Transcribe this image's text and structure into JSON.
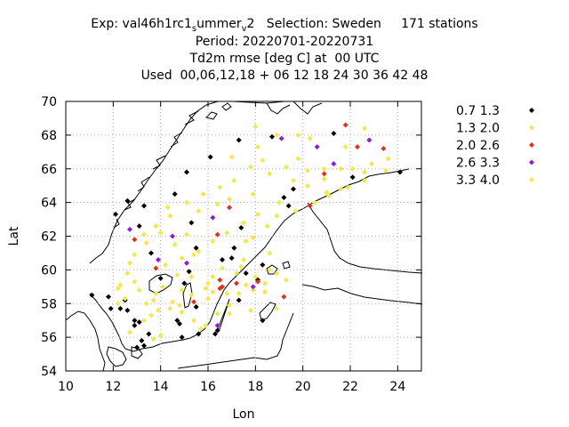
{
  "header": {
    "line1": {
      "prefix": "Exp: val46h1rc1",
      "sub1": "s",
      "mid": "ummer",
      "sub2": "v",
      "rest": "2   Selection: Sweden     171 stations"
    },
    "line2": "Period: 20220701-20220731",
    "line3": "Td2m rmse [deg C] at  00 UTC",
    "line4": "Used  00,06,12,18 + 06 12 18 24 30 36 42 48"
  },
  "chart_data": {
    "type": "scatter",
    "xlabel": "Lon",
    "ylabel": "Lat",
    "xlim": [
      10,
      25
    ],
    "ylim": [
      54,
      70
    ],
    "xticks": [
      10,
      12,
      14,
      16,
      18,
      20,
      22,
      24
    ],
    "yticks": [
      54,
      56,
      58,
      60,
      62,
      64,
      66,
      68,
      70
    ],
    "legend_position": "right",
    "series": [
      {
        "name": "0.7 1.3",
        "color": "#000000",
        "points": [
          [
            12.1,
            63.3
          ],
          [
            13.3,
            63.8
          ],
          [
            14.6,
            64.5
          ],
          [
            15.1,
            65.8
          ],
          [
            16.1,
            66.7
          ],
          [
            17.3,
            67.7
          ],
          [
            18.7,
            67.9
          ],
          [
            19.6,
            64.8
          ],
          [
            19.2,
            64.3
          ],
          [
            19.4,
            63.8
          ],
          [
            17.4,
            62.5
          ],
          [
            15.5,
            61.3
          ],
          [
            13.6,
            61.0
          ],
          [
            15.2,
            59.9
          ],
          [
            14.0,
            59.5
          ],
          [
            15.0,
            59.2
          ],
          [
            18.1,
            59.4
          ],
          [
            17.6,
            59.8
          ],
          [
            17.0,
            60.7
          ],
          [
            18.3,
            60.3
          ],
          [
            17.3,
            58.2
          ],
          [
            18.3,
            57.0
          ],
          [
            16.4,
            56.4
          ],
          [
            16.3,
            56.2
          ],
          [
            15.6,
            56.2
          ],
          [
            14.9,
            56.0
          ],
          [
            14.8,
            56.8
          ],
          [
            13.5,
            56.2
          ],
          [
            13.2,
            55.8
          ],
          [
            13.0,
            55.4
          ],
          [
            13.3,
            55.5
          ],
          [
            12.9,
            56.7
          ],
          [
            12.6,
            57.6
          ],
          [
            12.5,
            58.2
          ],
          [
            11.9,
            57.7
          ],
          [
            12.3,
            57.7
          ],
          [
            11.1,
            58.5
          ],
          [
            11.8,
            58.4
          ],
          [
            12.9,
            57.0
          ],
          [
            13.1,
            56.9
          ],
          [
            22.1,
            65.5
          ],
          [
            24.1,
            65.8
          ],
          [
            21.3,
            68.1
          ],
          [
            12.6,
            64.1
          ],
          [
            13.1,
            62.6
          ],
          [
            15.3,
            62.8
          ],
          [
            17.1,
            61.3
          ],
          [
            16.6,
            60.6
          ],
          [
            15.5,
            57.8
          ],
          [
            14.7,
            57.0
          ]
        ]
      },
      {
        "name": "1.3 2.0",
        "color": "#f1e84b",
        "points": [
          [
            18.0,
            68.5
          ],
          [
            18.9,
            68.0
          ],
          [
            19.8,
            68.0
          ],
          [
            20.3,
            67.8
          ],
          [
            21.8,
            67.3
          ],
          [
            22.6,
            68.4
          ],
          [
            23.6,
            66.6
          ],
          [
            22.9,
            66.3
          ],
          [
            22.6,
            65.8
          ],
          [
            21.6,
            66.0
          ],
          [
            20.9,
            66.0
          ],
          [
            20.2,
            65.9
          ],
          [
            19.3,
            66.1
          ],
          [
            18.3,
            66.5
          ],
          [
            17.8,
            66.1
          ],
          [
            17.1,
            65.3
          ],
          [
            16.5,
            64.9
          ],
          [
            15.8,
            64.5
          ],
          [
            15.1,
            64.0
          ],
          [
            14.4,
            63.2
          ],
          [
            13.8,
            62.6
          ],
          [
            13.3,
            62.1
          ],
          [
            12.9,
            60.9
          ],
          [
            12.6,
            59.8
          ],
          [
            12.3,
            59.1
          ],
          [
            12.5,
            58.3
          ],
          [
            13.1,
            58.8
          ],
          [
            13.4,
            58.0
          ],
          [
            13.8,
            58.6
          ],
          [
            14.1,
            59.0
          ],
          [
            14.5,
            58.1
          ],
          [
            14.9,
            57.5
          ],
          [
            15.4,
            57.0
          ],
          [
            15.9,
            56.7
          ],
          [
            16.4,
            57.4
          ],
          [
            16.9,
            57.9
          ],
          [
            17.3,
            58.6
          ],
          [
            17.6,
            59.1
          ],
          [
            18.0,
            59.6
          ],
          [
            18.6,
            60.0
          ],
          [
            18.9,
            59.8
          ],
          [
            19.3,
            59.4
          ],
          [
            18.4,
            59.2
          ],
          [
            17.9,
            58.8
          ],
          [
            17.2,
            59.8
          ],
          [
            16.6,
            60.1
          ],
          [
            16.2,
            59.6
          ],
          [
            15.9,
            58.9
          ],
          [
            16.0,
            58.3
          ],
          [
            15.3,
            58.5
          ],
          [
            14.7,
            59.7
          ],
          [
            14.2,
            60.3
          ],
          [
            14.9,
            60.7
          ],
          [
            15.6,
            61.1
          ],
          [
            16.2,
            61.7
          ],
          [
            16.8,
            62.2
          ],
          [
            17.5,
            62.8
          ],
          [
            18.1,
            63.3
          ],
          [
            18.9,
            63.2
          ],
          [
            19.7,
            63.5
          ],
          [
            20.5,
            64.0
          ],
          [
            21.1,
            64.4
          ],
          [
            21.6,
            64.8
          ],
          [
            20.9,
            65.4
          ],
          [
            21.9,
            64.9
          ],
          [
            15.1,
            62.1
          ],
          [
            14.6,
            61.5
          ],
          [
            14.0,
            62.2
          ],
          [
            13.4,
            61.6
          ],
          [
            12.7,
            60.4
          ],
          [
            14.4,
            57.7
          ],
          [
            14.0,
            56.1
          ],
          [
            13.7,
            55.9
          ],
          [
            15.7,
            56.5
          ],
          [
            17.5,
            60.6
          ],
          [
            18.6,
            61.0
          ],
          [
            17.9,
            61.9
          ],
          [
            18.5,
            62.6
          ],
          [
            19.0,
            64.0
          ],
          [
            17.9,
            64.5
          ],
          [
            16.9,
            64.2
          ],
          [
            16.4,
            63.9
          ],
          [
            15.6,
            63.5
          ],
          [
            14.3,
            63.7
          ],
          [
            22.1,
            66.0
          ],
          [
            19.8,
            66.6
          ],
          [
            18.1,
            67.3
          ],
          [
            17.0,
            66.7
          ],
          [
            18.6,
            65.7
          ],
          [
            17.4,
            60.2
          ],
          [
            16.0,
            59.2
          ],
          [
            13.6,
            57.3
          ],
          [
            13.3,
            57.0
          ],
          [
            12.7,
            56.3
          ],
          [
            12.2,
            58.9
          ],
          [
            12.9,
            59.3
          ],
          [
            14.9,
            58.8
          ],
          [
            15.3,
            59.6
          ],
          [
            16.8,
            58.6
          ],
          [
            17.8,
            57.6
          ]
        ]
      },
      {
        "name": "2.0 2.6",
        "color": "#e0301e",
        "points": [
          [
            21.8,
            68.6
          ],
          [
            22.3,
            67.3
          ],
          [
            23.4,
            67.2
          ],
          [
            20.9,
            65.7
          ],
          [
            20.3,
            63.8
          ],
          [
            16.9,
            63.7
          ],
          [
            16.4,
            62.1
          ],
          [
            12.9,
            61.8
          ],
          [
            13.8,
            60.1
          ],
          [
            15.4,
            58.1
          ],
          [
            16.5,
            59.4
          ],
          [
            16.5,
            58.9
          ],
          [
            18.1,
            59.3
          ],
          [
            17.2,
            59.2
          ],
          [
            19.2,
            58.4
          ],
          [
            16.6,
            59.0
          ]
        ]
      },
      {
        "name": "2.6 3.3",
        "color": "#8e1cd6",
        "points": [
          [
            19.1,
            67.8
          ],
          [
            20.6,
            67.3
          ],
          [
            21.3,
            66.3
          ],
          [
            22.8,
            67.7
          ],
          [
            16.2,
            63.1
          ],
          [
            14.5,
            62.0
          ],
          [
            12.7,
            62.4
          ],
          [
            13.9,
            60.6
          ],
          [
            15.1,
            60.4
          ],
          [
            16.4,
            56.7
          ],
          [
            17.9,
            59.0
          ]
        ]
      },
      {
        "name": "3.3 4.0",
        "color": "#f1e84b",
        "points": [
          [
            21.0,
            64.6
          ],
          [
            22.6,
            65.3
          ],
          [
            23.5,
            65.9
          ],
          [
            18.4,
            58.7
          ],
          [
            16.9,
            57.4
          ],
          [
            18.9,
            57.7
          ],
          [
            13.7,
            58.2
          ],
          [
            13.9,
            57.6
          ],
          [
            14.8,
            57.9
          ],
          [
            16.2,
            58.7
          ],
          [
            17.6,
            61.7
          ],
          [
            20.2,
            65.0
          ],
          [
            19.6,
            65.3
          ],
          [
            12.2,
            58.0
          ],
          [
            15.4,
            60.9
          ]
        ]
      }
    ]
  }
}
